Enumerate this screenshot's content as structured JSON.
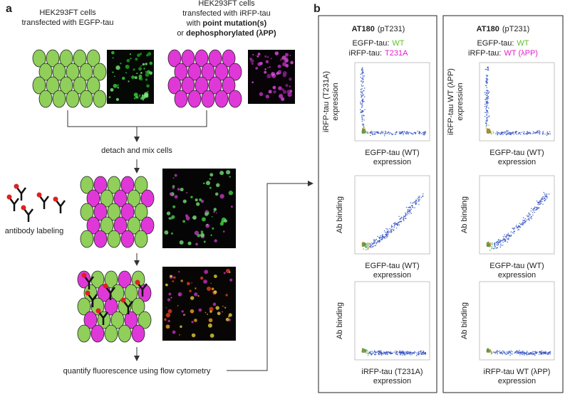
{
  "panel_a": {
    "label": "a",
    "egfp_caption": [
      "HEK293FT cells",
      "transfected with EGFP-tau"
    ],
    "irfp_caption": {
      "line1": "HEK293FT cells",
      "line2": "transfected with iRFP-tau",
      "line3_pre": "with",
      "line3_bold": "point mutation(s)",
      "line4_pre": "or",
      "line4_bold": "dephosphorylated (λPP)"
    },
    "steps": {
      "mix": "detach and mix cells",
      "labeling": "antibody labeling",
      "quantify": "quantify fluorescence using flow cytometry"
    }
  },
  "panel_b": {
    "label": "b",
    "columns": [
      {
        "antibody": "AT180",
        "site": "(pT231)",
        "egfp_prefix": "EGFP-tau:",
        "egfp_value": "WT",
        "irfp_prefix": "iRFP-tau:",
        "irfp_value": "T231A",
        "plots": [
          {
            "y_label": [
              "iRFP-tau (T231A)",
              "expression"
            ],
            "x_label": [
              "EGFP-tau (WT)",
              "expression"
            ]
          },
          {
            "y_label": [
              "Ab binding"
            ],
            "x_label": [
              "EGFP-tau (WT)",
              "expression"
            ]
          },
          {
            "y_label": [
              "Ab binding"
            ],
            "x_label": [
              "iRFP-tau (T231A)",
              "expression"
            ]
          }
        ]
      },
      {
        "antibody": "AT180",
        "site": "(pT231)",
        "egfp_prefix": "EGFP-tau:",
        "egfp_value": "WT",
        "irfp_prefix": "iRFP-tau:",
        "irfp_value": "WT (λPP)",
        "plots": [
          {
            "y_label": [
              "iRFP-tau WT (λPP)",
              "expression"
            ],
            "x_label": [
              "EGFP-tau (WT)",
              "expression"
            ]
          },
          {
            "y_label": [
              "Ab binding"
            ],
            "x_label": [
              "EGFP-tau (WT)",
              "expression"
            ]
          },
          {
            "y_label": [
              "Ab binding"
            ],
            "x_label": [
              "iRFP-tau WT (λPP)",
              "expression"
            ]
          }
        ]
      }
    ]
  }
}
